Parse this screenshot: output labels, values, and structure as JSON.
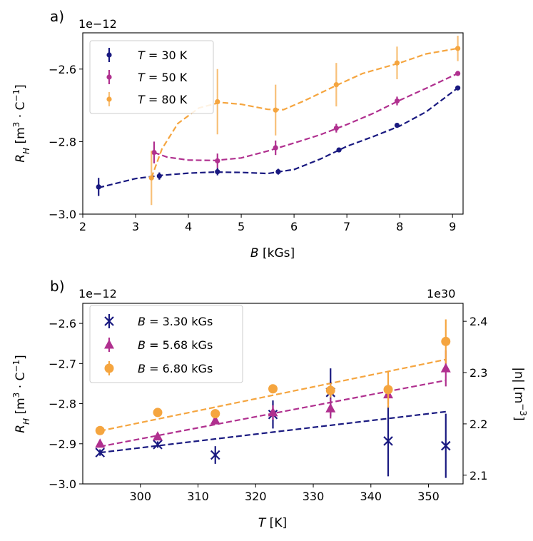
{
  "figure": {
    "panel_a_label": "a)",
    "panel_b_label": "b)"
  },
  "colors": {
    "c30": "#191980",
    "c50": "#b0308f",
    "c80": "#f5a53f"
  },
  "chart_data": [
    {
      "type": "line",
      "id": "a",
      "multiplier": "1e−12",
      "xlabel_var": "B",
      "xlabel_unit": " [kGs]",
      "ylabel": "R_H [m^3 · C^−1]",
      "xlim": [
        2,
        9.2
      ],
      "ylim": [
        -3.0,
        -2.5
      ],
      "xticks": [
        2,
        3,
        4,
        5,
        6,
        7,
        8,
        9
      ],
      "yticks": [
        -3.0,
        -2.8,
        -2.6
      ],
      "ytick_labels": [
        "−3.0",
        "−2.8",
        "−2.6"
      ],
      "legend": {
        "placement": "top-left",
        "prefix": "T",
        "eq": " = "
      },
      "series": [
        {
          "name": "T = 30 K",
          "legend_value": "30 K",
          "color_key": "c30",
          "x": [
            2.3,
            3.45,
            4.55,
            5.7,
            6.85,
            7.95,
            9.1
          ],
          "y": [
            -2.925,
            -2.895,
            -2.883,
            -2.883,
            -2.823,
            -2.755,
            -2.652
          ],
          "err": [
            0.025,
            0.01,
            0.01,
            0.008,
            0.006,
            0.005,
            0.005
          ],
          "fit": [
            [
              2.3,
              -2.927
            ],
            [
              3.0,
              -2.902
            ],
            [
              3.5,
              -2.893
            ],
            [
              4.0,
              -2.887
            ],
            [
              4.5,
              -2.884
            ],
            [
              5.0,
              -2.885
            ],
            [
              5.5,
              -2.888
            ],
            [
              6.0,
              -2.877
            ],
            [
              6.5,
              -2.848
            ],
            [
              7.0,
              -2.813
            ],
            [
              7.5,
              -2.786
            ],
            [
              8.0,
              -2.757
            ],
            [
              8.5,
              -2.718
            ],
            [
              9.1,
              -2.652
            ]
          ]
        },
        {
          "name": "T = 50 K",
          "legend_value": "50 K",
          "color_key": "c50",
          "x": [
            3.35,
            4.55,
            5.65,
            6.8,
            7.95,
            9.1
          ],
          "y": [
            -2.83,
            -2.853,
            -2.817,
            -2.763,
            -2.688,
            -2.612
          ],
          "err": [
            0.03,
            0.02,
            0.02,
            0.012,
            0.012,
            0.005
          ],
          "fit": [
            [
              3.35,
              -2.83
            ],
            [
              3.6,
              -2.843
            ],
            [
              4.0,
              -2.851
            ],
            [
              4.5,
              -2.852
            ],
            [
              5.0,
              -2.845
            ],
            [
              5.5,
              -2.826
            ],
            [
              6.0,
              -2.804
            ],
            [
              6.5,
              -2.781
            ],
            [
              7.0,
              -2.753
            ],
            [
              7.5,
              -2.722
            ],
            [
              8.0,
              -2.686
            ],
            [
              8.5,
              -2.653
            ],
            [
              9.1,
              -2.612
            ]
          ]
        },
        {
          "name": "T = 80 K",
          "legend_value": "80 K",
          "color_key": "c80",
          "x": [
            3.3,
            4.55,
            5.65,
            6.8,
            7.95,
            9.1
          ],
          "y": [
            -2.9,
            -2.69,
            -2.713,
            -2.643,
            -2.583,
            -2.543
          ],
          "err": [
            0.075,
            0.09,
            0.07,
            0.06,
            0.045,
            0.035
          ],
          "fit": [
            [
              3.3,
              -2.9
            ],
            [
              3.5,
              -2.82
            ],
            [
              3.8,
              -2.75
            ],
            [
              4.2,
              -2.707
            ],
            [
              4.6,
              -2.692
            ],
            [
              5.0,
              -2.697
            ],
            [
              5.5,
              -2.711
            ],
            [
              5.8,
              -2.712
            ],
            [
              6.2,
              -2.687
            ],
            [
              6.8,
              -2.645
            ],
            [
              7.3,
              -2.612
            ],
            [
              8.0,
              -2.583
            ],
            [
              8.5,
              -2.558
            ],
            [
              9.1,
              -2.543
            ]
          ]
        }
      ]
    },
    {
      "type": "scatter",
      "id": "b",
      "multiplier": "1e−12",
      "right_multiplier": "1e30",
      "xlabel_var": "T",
      "xlabel_unit": " [K]",
      "ylabel": "R_H [m^3 · C^−1]",
      "right_ylabel": "|n| [m^−3]",
      "xlim": [
        290,
        356
      ],
      "ylim": [
        -3.0,
        -2.55
      ],
      "right_ylim": [
        2.083,
        2.435
      ],
      "xticks": [
        300,
        310,
        320,
        330,
        340,
        350
      ],
      "yticks": [
        -3.0,
        -2.9,
        -2.8,
        -2.7,
        -2.6
      ],
      "ytick_labels": [
        "−3.0",
        "−2.9",
        "−2.8",
        "−2.7",
        "−2.6"
      ],
      "right_yticks": [
        2.1,
        2.2,
        2.3,
        2.4
      ],
      "right_ytick_labels": [
        "2.1",
        "2.2",
        "2.3",
        "2.4"
      ],
      "legend": {
        "placement": "top-left",
        "prefix": "B",
        "eq": " = "
      },
      "series": [
        {
          "name": "B = 3.30 kGs",
          "legend_value": "3.30 kGs",
          "marker": "x",
          "color_key": "c30",
          "x": [
            293,
            303,
            313,
            323,
            333,
            343,
            353
          ],
          "y": [
            -2.922,
            -2.902,
            -2.928,
            -2.827,
            -2.772,
            -2.893,
            -2.905
          ],
          "err": [
            0.008,
            0.008,
            0.022,
            0.035,
            0.06,
            0.088,
            0.08
          ],
          "fit_x": [
            293,
            353
          ],
          "fit_y": [
            -2.922,
            -2.82
          ]
        },
        {
          "name": "B = 5.68 kGs",
          "legend_value": "5.68 kGs",
          "marker": "triangle",
          "color_key": "c50",
          "x": [
            293,
            303,
            313,
            323,
            333,
            343,
            353
          ],
          "y": [
            -2.9,
            -2.882,
            -2.842,
            -2.822,
            -2.812,
            -2.777,
            -2.712
          ],
          "err": [
            0.008,
            0.008,
            0.008,
            0.018,
            0.025,
            0.025,
            0.045
          ],
          "fit_x": [
            293,
            353
          ],
          "fit_y": [
            -2.907,
            -2.742
          ]
        },
        {
          "name": "B = 6.80 kGs",
          "legend_value": "6.80 kGs",
          "marker": "circle",
          "color_key": "c80",
          "x": [
            293,
            303,
            313,
            323,
            333,
            343,
            353
          ],
          "y": [
            -2.867,
            -2.822,
            -2.825,
            -2.763,
            -2.767,
            -2.765,
            -2.645
          ],
          "err": [
            0.008,
            0.008,
            0.008,
            0.01,
            0.018,
            0.045,
            0.055
          ],
          "fit_x": [
            293,
            353
          ],
          "fit_y": [
            -2.868,
            -2.69
          ]
        }
      ]
    }
  ]
}
